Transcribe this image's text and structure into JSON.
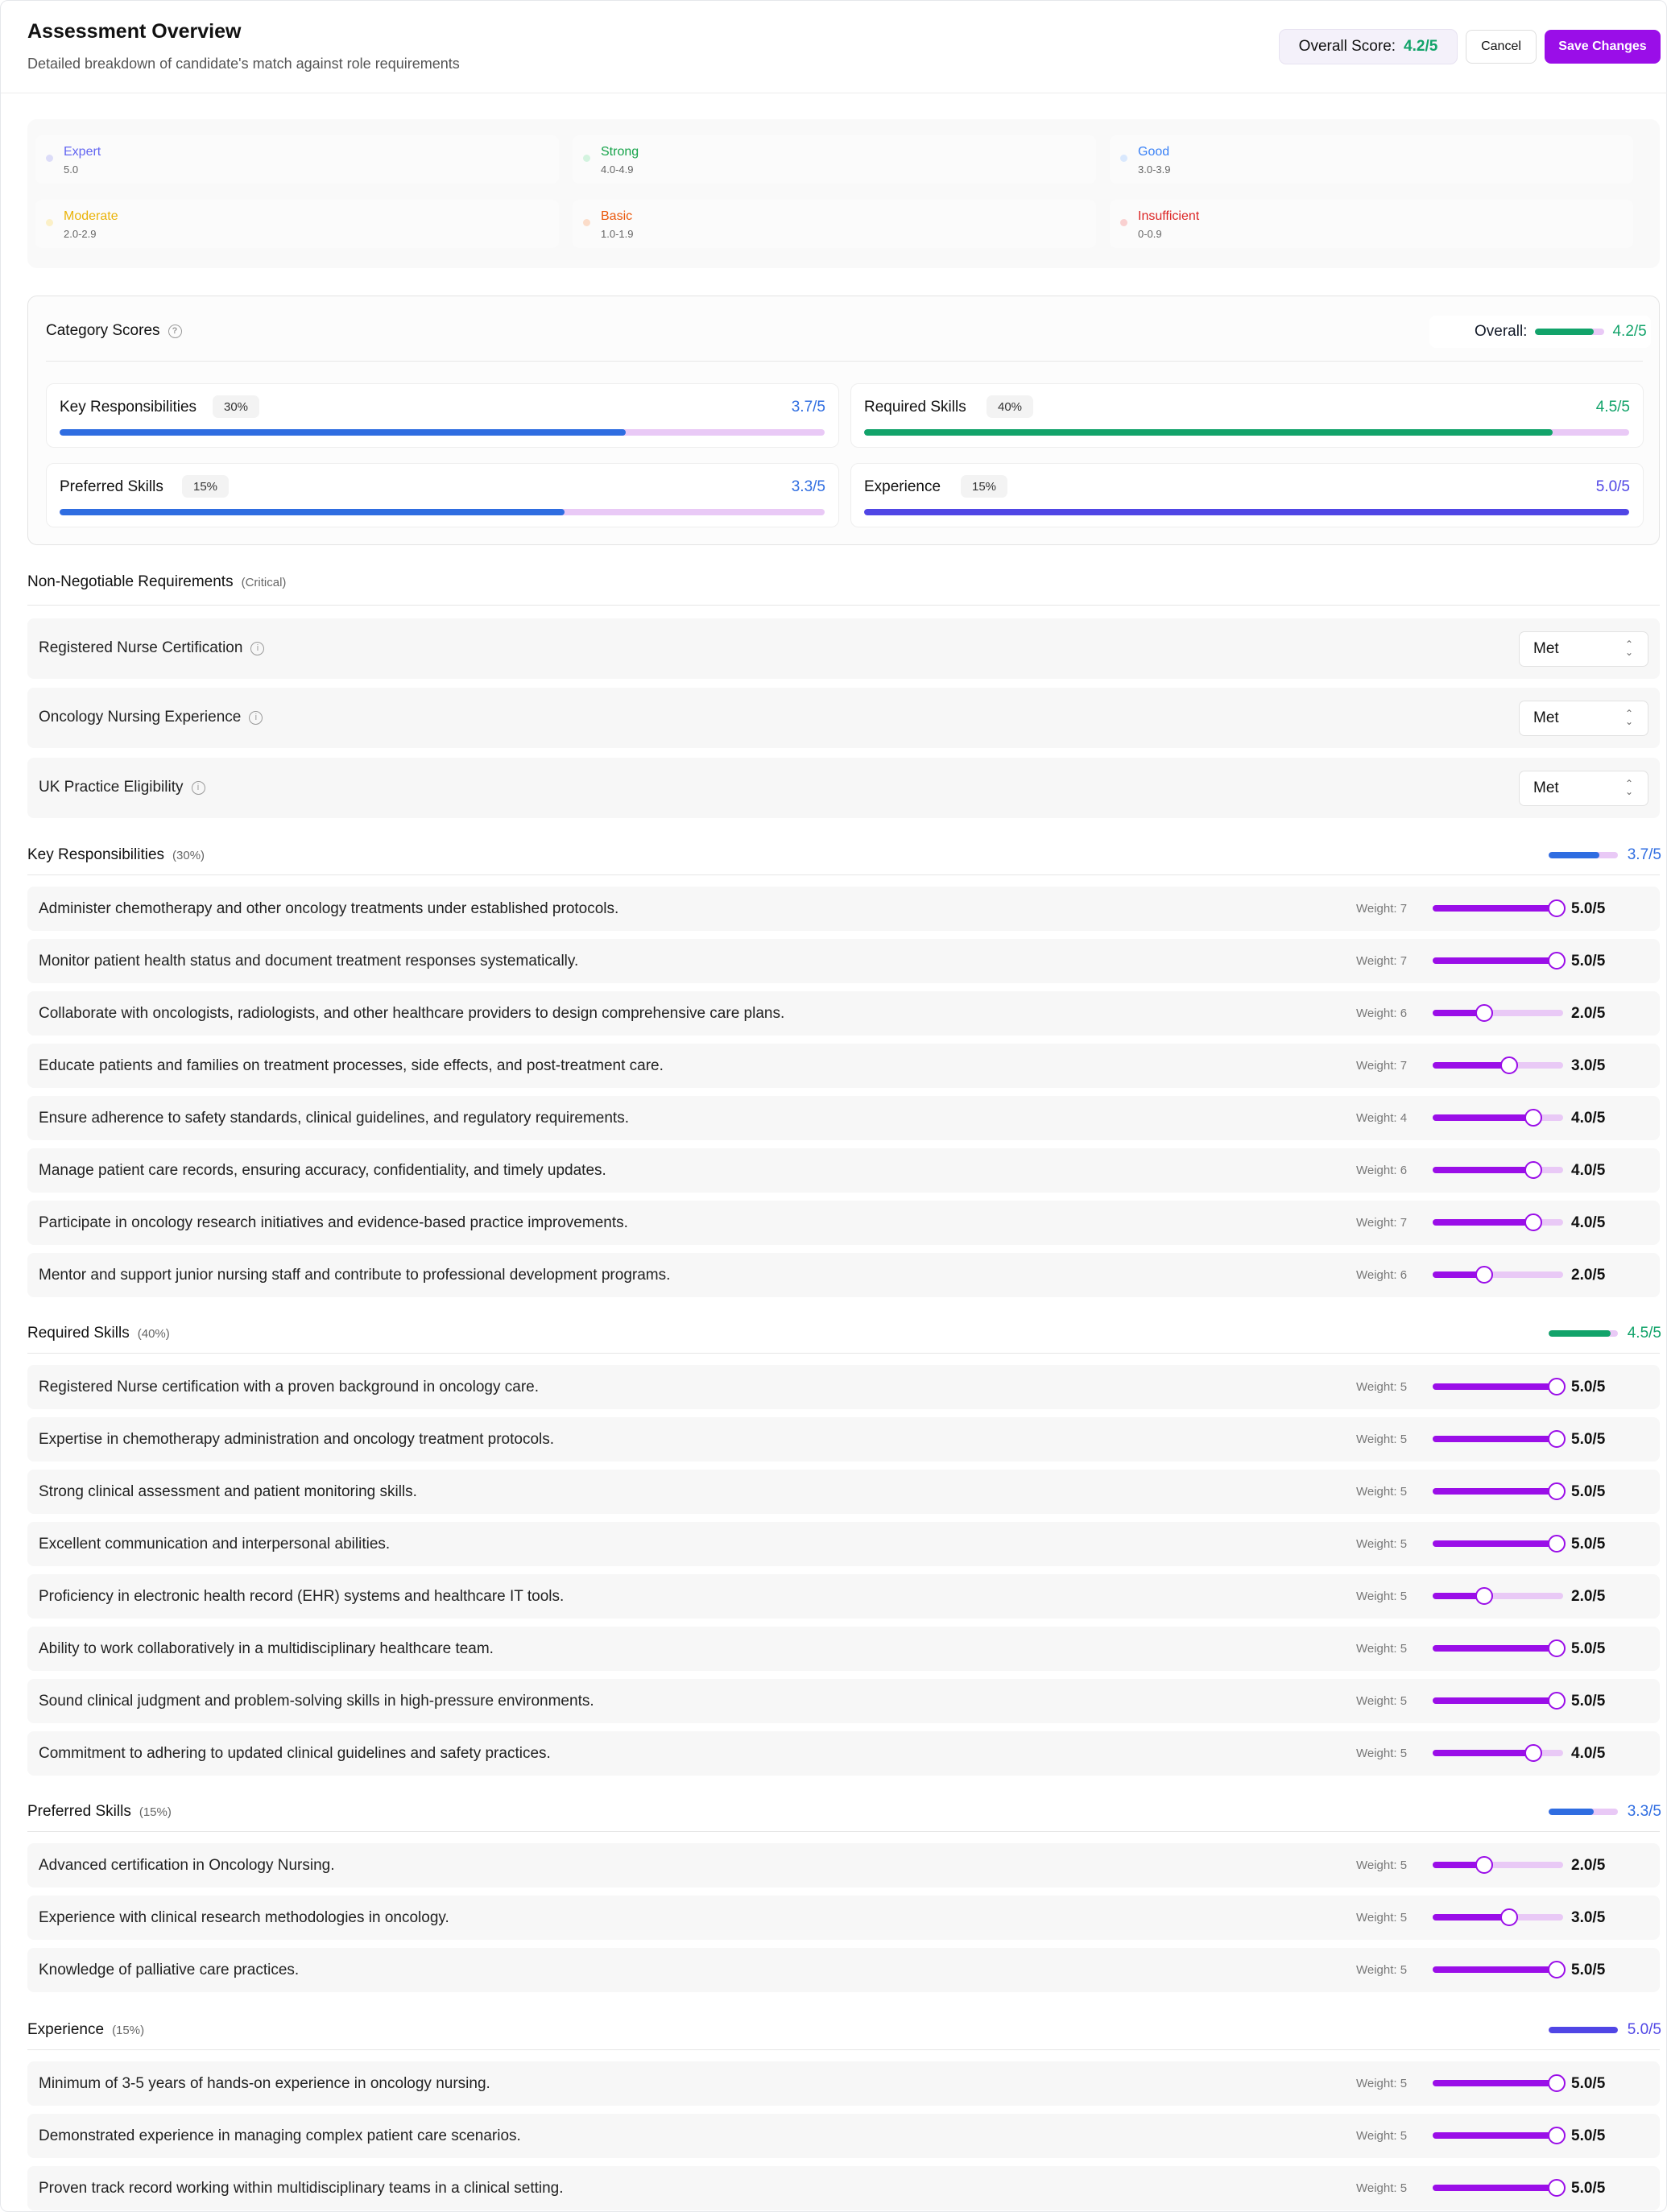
{
  "header": {
    "title": "Assessment Overview",
    "subtitle": "Detailed breakdown of candidate's match against role requirements",
    "overall_label": "Overall Score:",
    "overall_value": "4.2/5",
    "cancel_label": "Cancel",
    "save_label": "Save Changes"
  },
  "legend": [
    {
      "name": "Expert",
      "range": "5.0",
      "color": "#6366f1",
      "dot": "#dcdcf8"
    },
    {
      "name": "Strong",
      "range": "4.0-4.9",
      "color": "#16a34a",
      "dot": "#d3f3df"
    },
    {
      "name": "Good",
      "range": "3.0-3.9",
      "color": "#3b82f6",
      "dot": "#d9e8fd"
    },
    {
      "name": "Moderate",
      "range": "2.0-2.9",
      "color": "#eab308",
      "dot": "#fbf0c7"
    },
    {
      "name": "Basic",
      "range": "1.0-1.9",
      "color": "#ea580c",
      "dot": "#fbdcc9"
    },
    {
      "name": "Insufficient",
      "range": "0-0.9",
      "color": "#dc2626",
      "dot": "#f9d0d0"
    }
  ],
  "category_scores": {
    "title": "Category Scores",
    "overall_label": "Overall:",
    "overall_value": "4.2/5",
    "overall_fraction": 0.84,
    "overall_color": "#12a36a",
    "cards": [
      {
        "name": "Key Responsibilities",
        "pct": "30%",
        "score": "3.7/5",
        "fraction": 0.74,
        "color": "#2f6de1"
      },
      {
        "name": "Required Skills",
        "pct": "40%",
        "score": "4.5/5",
        "fraction": 0.9,
        "color": "#12a36a"
      },
      {
        "name": "Preferred Skills",
        "pct": "15%",
        "score": "3.3/5",
        "fraction": 0.66,
        "color": "#2f6de1"
      },
      {
        "name": "Experience",
        "pct": "15%",
        "score": "5.0/5",
        "fraction": 1.0,
        "color": "#5046e5"
      }
    ]
  },
  "non_negotiable": {
    "title": "Non-Negotiable Requirements",
    "sub": "(Critical)",
    "rows": [
      {
        "label": "Registered Nurse Certification",
        "value": "Met"
      },
      {
        "label": "Oncology Nursing Experience",
        "value": "Met"
      },
      {
        "label": "UK Practice Eligibility",
        "value": "Met"
      }
    ]
  },
  "sections": [
    {
      "title": "Key Responsibilities",
      "sub": "(30%)",
      "score": "3.7/5",
      "fraction": 0.74,
      "color": "#2f6de1",
      "items": [
        {
          "text": "Administer chemotherapy and other oncology treatments under established protocols.",
          "weight": "Weight: 7",
          "score": 5,
          "label": "5.0/5"
        },
        {
          "text": "Monitor patient health status and document treatment responses systematically.",
          "weight": "Weight: 7",
          "score": 5,
          "label": "5.0/5"
        },
        {
          "text": "Collaborate with oncologists, radiologists, and other healthcare providers to design comprehensive care plans.",
          "weight": "Weight: 6",
          "score": 2,
          "label": "2.0/5"
        },
        {
          "text": "Educate patients and families on treatment processes, side effects, and post-treatment care.",
          "weight": "Weight: 7",
          "score": 3,
          "label": "3.0/5"
        },
        {
          "text": "Ensure adherence to safety standards, clinical guidelines, and regulatory requirements.",
          "weight": "Weight: 4",
          "score": 4,
          "label": "4.0/5"
        },
        {
          "text": "Manage patient care records, ensuring accuracy, confidentiality, and timely updates.",
          "weight": "Weight: 6",
          "score": 4,
          "label": "4.0/5"
        },
        {
          "text": "Participate in oncology research initiatives and evidence-based practice improvements.",
          "weight": "Weight: 7",
          "score": 4,
          "label": "4.0/5"
        },
        {
          "text": "Mentor and support junior nursing staff and contribute to professional development programs.",
          "weight": "Weight: 6",
          "score": 2,
          "label": "2.0/5"
        }
      ]
    },
    {
      "title": "Required Skills",
      "sub": "(40%)",
      "score": "4.5/5",
      "fraction": 0.9,
      "color": "#12a36a",
      "items": [
        {
          "text": "Registered Nurse certification with a proven background in oncology care.",
          "weight": "Weight: 5",
          "score": 5,
          "label": "5.0/5"
        },
        {
          "text": "Expertise in chemotherapy administration and oncology treatment protocols.",
          "weight": "Weight: 5",
          "score": 5,
          "label": "5.0/5"
        },
        {
          "text": "Strong clinical assessment and patient monitoring skills.",
          "weight": "Weight: 5",
          "score": 5,
          "label": "5.0/5"
        },
        {
          "text": "Excellent communication and interpersonal abilities.",
          "weight": "Weight: 5",
          "score": 5,
          "label": "5.0/5"
        },
        {
          "text": "Proficiency in electronic health record (EHR) systems and healthcare IT tools.",
          "weight": "Weight: 5",
          "score": 2,
          "label": "2.0/5"
        },
        {
          "text": "Ability to work collaboratively in a multidisciplinary healthcare team.",
          "weight": "Weight: 5",
          "score": 5,
          "label": "5.0/5"
        },
        {
          "text": "Sound clinical judgment and problem-solving skills in high-pressure environments.",
          "weight": "Weight: 5",
          "score": 5,
          "label": "5.0/5"
        },
        {
          "text": "Commitment to adhering to updated clinical guidelines and safety practices.",
          "weight": "Weight: 5",
          "score": 4,
          "label": "4.0/5"
        }
      ]
    },
    {
      "title": "Preferred Skills",
      "sub": "(15%)",
      "score": "3.3/5",
      "fraction": 0.66,
      "color": "#2f6de1",
      "items": [
        {
          "text": "Advanced certification in Oncology Nursing.",
          "weight": "Weight: 5",
          "score": 2,
          "label": "2.0/5"
        },
        {
          "text": "Experience with clinical research methodologies in oncology.",
          "weight": "Weight: 5",
          "score": 3,
          "label": "3.0/5"
        },
        {
          "text": "Knowledge of palliative care practices.",
          "weight": "Weight: 5",
          "score": 5,
          "label": "5.0/5"
        }
      ]
    },
    {
      "title": "Experience",
      "sub": "(15%)",
      "score": "5.0/5",
      "fraction": 1.0,
      "color": "#5046e5",
      "items": [
        {
          "text": "Minimum of 3-5 years of hands-on experience in oncology nursing.",
          "weight": "Weight: 5",
          "score": 5,
          "label": "5.0/5"
        },
        {
          "text": "Demonstrated experience in managing complex patient care scenarios.",
          "weight": "Weight: 5",
          "score": 5,
          "label": "5.0/5"
        },
        {
          "text": "Proven track record working within multidisciplinary teams in a clinical setting.",
          "weight": "Weight: 5",
          "score": 5,
          "label": "5.0/5"
        }
      ]
    }
  ]
}
